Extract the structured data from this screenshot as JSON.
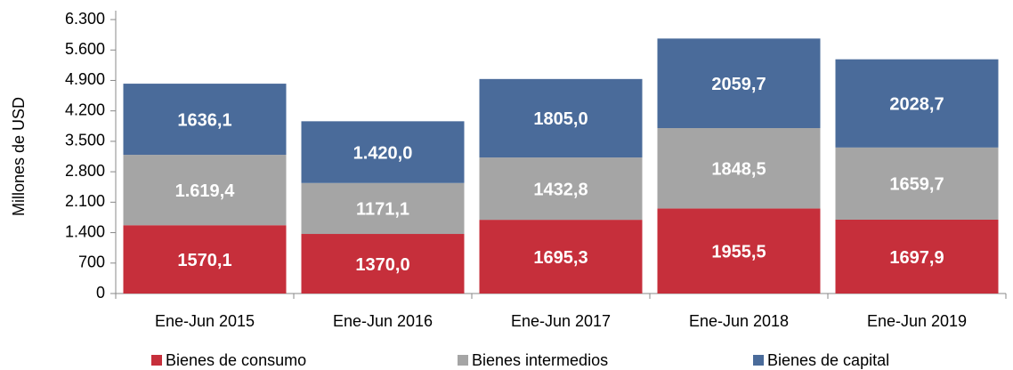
{
  "chart_data": {
    "type": "stacked_bar",
    "ylabel": "Millones de  USD",
    "categories": [
      "Ene-Jun 2015",
      "Ene-Jun 2016",
      "Ene-Jun 2017",
      "Ene-Jun 2018",
      "Ene-Jun 2019"
    ],
    "series": [
      {
        "name": "Bienes de consumo",
        "color": "#c62f3b",
        "values": [
          1570.1,
          1370.0,
          1695.3,
          1955.5,
          1697.9
        ],
        "value_labels": [
          "1570,1",
          "1370,0",
          "1695,3",
          "1955,5",
          "1697,9"
        ]
      },
      {
        "name": "Bienes intermedios",
        "color": "#a5a5a5",
        "values": [
          1619.4,
          1171.1,
          1432.8,
          1848.5,
          1659.7
        ],
        "value_labels": [
          "1.619,4",
          "1171,1",
          "1432,8",
          "1848,5",
          "1659,7"
        ]
      },
      {
        "name": "Bienes de capital",
        "color": "#4a6b9a",
        "values": [
          1636.1,
          1420.0,
          1805.0,
          2059.7,
          2028.7
        ],
        "value_labels": [
          "1636,1",
          "1.420,0",
          "1805,0",
          "2059,7",
          "2028,7"
        ]
      }
    ],
    "ylim": [
      0,
      6300
    ],
    "yticks": [
      0,
      700,
      {
        "value": 1400,
        "label": "1.400"
      },
      {
        "value": 2100,
        "label": "2.100"
      },
      {
        "value": 2800,
        "label": "2.800"
      },
      {
        "value": 3500,
        "label": "3.500"
      },
      {
        "value": 4200,
        "label": "4.200"
      },
      {
        "value": 4900,
        "label": "4.900"
      },
      {
        "value": 5600,
        "label": "5.600"
      },
      {
        "value": 6300,
        "label": "6.300"
      }
    ],
    "legend": "bottom"
  }
}
